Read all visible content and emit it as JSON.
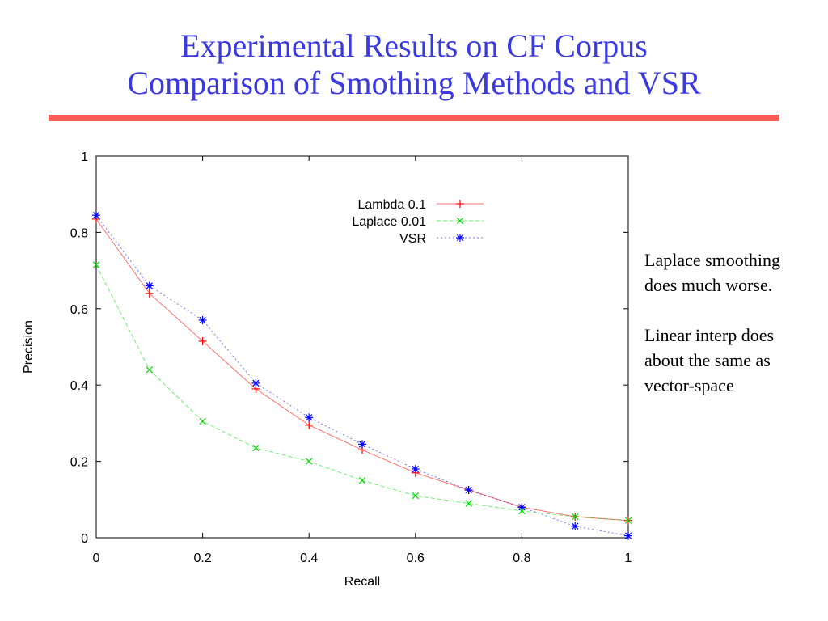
{
  "slide": {
    "title_line1": "Experimental Results on CF Corpus",
    "title_line2": "Comparison of Smothing Methods and VSR",
    "note1_line1": "Laplace smoothing",
    "note1_line2": "does much worse.",
    "note2_line1": "Linear interp does",
    "note2_line2": "about the same as",
    "note2_line3": "vector-space"
  },
  "chart_data": {
    "type": "line",
    "xlabel": "Recall",
    "ylabel": "Precision",
    "xlim": [
      0,
      1
    ],
    "ylim": [
      0,
      1
    ],
    "x_ticks": [
      "0",
      "0.2",
      "0.4",
      "0.6",
      "0.8",
      "1"
    ],
    "y_ticks": [
      "0",
      "0.2",
      "0.4",
      "0.6",
      "0.8",
      "1"
    ],
    "grid": false,
    "legend_position": "top-right",
    "x": [
      0,
      0.1,
      0.2,
      0.3,
      0.4,
      0.5,
      0.6,
      0.7,
      0.8,
      0.9,
      1.0
    ],
    "series": [
      {
        "name": "Lambda 0.1",
        "color": "#ff0000",
        "marker": "plus",
        "dash": "solid",
        "values": [
          0.835,
          0.64,
          0.515,
          0.39,
          0.295,
          0.23,
          0.17,
          0.125,
          0.08,
          0.055,
          0.045
        ]
      },
      {
        "name": "Laplace 0.01",
        "color": "#00dd00",
        "marker": "cross",
        "dash": "dashed",
        "values": [
          0.715,
          0.44,
          0.305,
          0.235,
          0.2,
          0.15,
          0.11,
          0.09,
          0.07,
          0.055,
          0.045
        ]
      },
      {
        "name": "VSR",
        "color": "#0000ff",
        "marker": "star",
        "dash": "dotted",
        "values": [
          0.845,
          0.66,
          0.57,
          0.405,
          0.315,
          0.245,
          0.18,
          0.125,
          0.08,
          0.03,
          0.005
        ]
      }
    ]
  }
}
